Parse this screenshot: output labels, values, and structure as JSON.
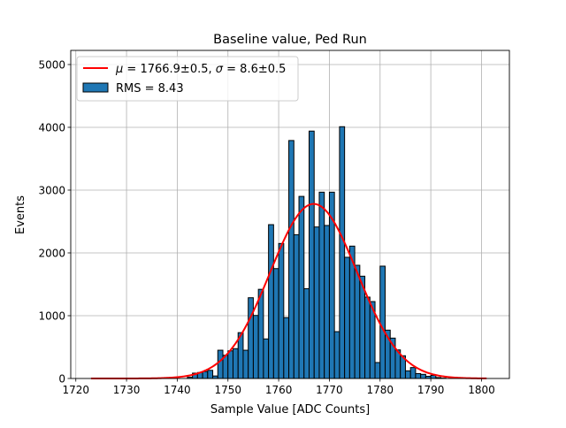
{
  "chart_data": {
    "type": "bar",
    "title": "Baseline value, Ped Run",
    "xlabel": "Sample Value [ADC Counts]",
    "ylabel": "Events",
    "xlim": [
      1719,
      1805.5
    ],
    "ylim": [
      0,
      5225
    ],
    "xticks": [
      1720,
      1730,
      1740,
      1750,
      1760,
      1770,
      1780,
      1790,
      1800
    ],
    "yticks": [
      0,
      1000,
      2000,
      3000,
      4000,
      5000
    ],
    "grid": true,
    "legend_position": "upper-left",
    "bin_width": 1,
    "histogram": {
      "name": "RMS = 8.43",
      "color": "#1f77b4",
      "edgecolor": "#000000",
      "bin_left_edges": [
        1742,
        1743,
        1744,
        1745,
        1746,
        1747,
        1748,
        1749,
        1750,
        1751,
        1752,
        1753,
        1754,
        1755,
        1756,
        1757,
        1758,
        1759,
        1760,
        1761,
        1762,
        1763,
        1764,
        1765,
        1766,
        1767,
        1768,
        1769,
        1770,
        1771,
        1772,
        1773,
        1774,
        1775,
        1776,
        1777,
        1778,
        1779,
        1780,
        1781,
        1782,
        1783,
        1784,
        1785,
        1786,
        1787,
        1788,
        1789,
        1790,
        1791,
        1792
      ],
      "counts": [
        20,
        85,
        95,
        110,
        130,
        40,
        450,
        370,
        440,
        475,
        730,
        450,
        1286,
        1004,
        1420,
        630,
        2450,
        1750,
        2150,
        970,
        3790,
        2290,
        2900,
        1430,
        3940,
        2413,
        2967,
        2437,
        2967,
        746,
        4010,
        1930,
        2108,
        1803,
        1629,
        1296,
        1225,
        254,
        1789,
        770,
        643,
        455,
        362,
        122,
        174,
        78,
        66,
        35,
        50,
        15,
        5
      ]
    },
    "fit": {
      "name_parts": {
        "mu_symbol": "μ",
        "mu_text": " = 1766.9±0.5, ",
        "sigma_symbol": "σ",
        "sigma_text": " = 8.6±0.5"
      },
      "type": "gaussian",
      "mu": 1766.9,
      "sigma": 8.6,
      "amplitude": 2780,
      "x_range": [
        1723,
        1801
      ],
      "color": "#ff0000"
    }
  }
}
